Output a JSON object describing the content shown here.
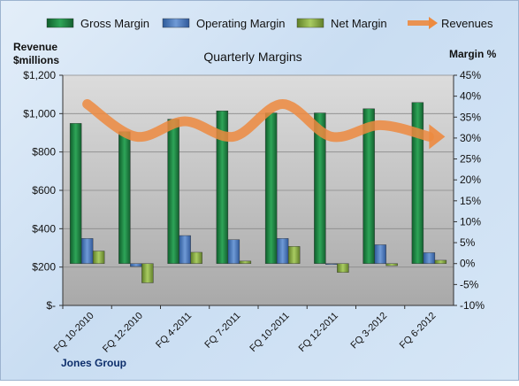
{
  "chart_data": {
    "type": "bar",
    "title": "Quarterly Margins",
    "left_axis_title_line1": "Revenue",
    "left_axis_title_line2": "$millions",
    "right_axis_title": "Margin %",
    "footer_label": "Jones Group",
    "categories": [
      "FQ 10-2010",
      "FQ 12-2010",
      "FQ 4-2011",
      "FQ 7-2011",
      "FQ 10-2011",
      "FQ 12-2011",
      "FQ 3-2012",
      "FQ 6-2012"
    ],
    "left_axis": {
      "ylim": [
        0,
        1200
      ],
      "ticks": [
        "$-",
        "$200",
        "$400",
        "$600",
        "$800",
        "$1,000",
        "$1,200"
      ]
    },
    "right_axis": {
      "ylim": [
        -10,
        45
      ],
      "ticks": [
        "-10%",
        "-5%",
        "0%",
        "5%",
        "10%",
        "15%",
        "20%",
        "25%",
        "30%",
        "35%",
        "40%",
        "45%"
      ]
    },
    "series": [
      {
        "name": "Gross Margin",
        "axis": "right",
        "color": "#1e8a44",
        "values": [
          33.5,
          31.5,
          34.5,
          36.5,
          36.0,
          36.0,
          37.0,
          38.5
        ]
      },
      {
        "name": "Operating Margin",
        "axis": "right",
        "color": "#4f7fc4",
        "values": [
          6.0,
          -0.7,
          6.7,
          5.7,
          6.0,
          -0.2,
          4.5,
          2.6
        ]
      },
      {
        "name": "Net Margin",
        "axis": "right",
        "color": "#8fb34a",
        "values": [
          3.0,
          -4.6,
          2.7,
          0.6,
          4.1,
          -2.1,
          -0.5,
          0.8
        ]
      },
      {
        "name": "Revenues",
        "axis": "left",
        "color": "#ed8a3f",
        "values": [
          1050,
          880,
          960,
          880,
          1050,
          880,
          940,
          880
        ]
      }
    ],
    "grid": true,
    "legend_position": "top"
  }
}
